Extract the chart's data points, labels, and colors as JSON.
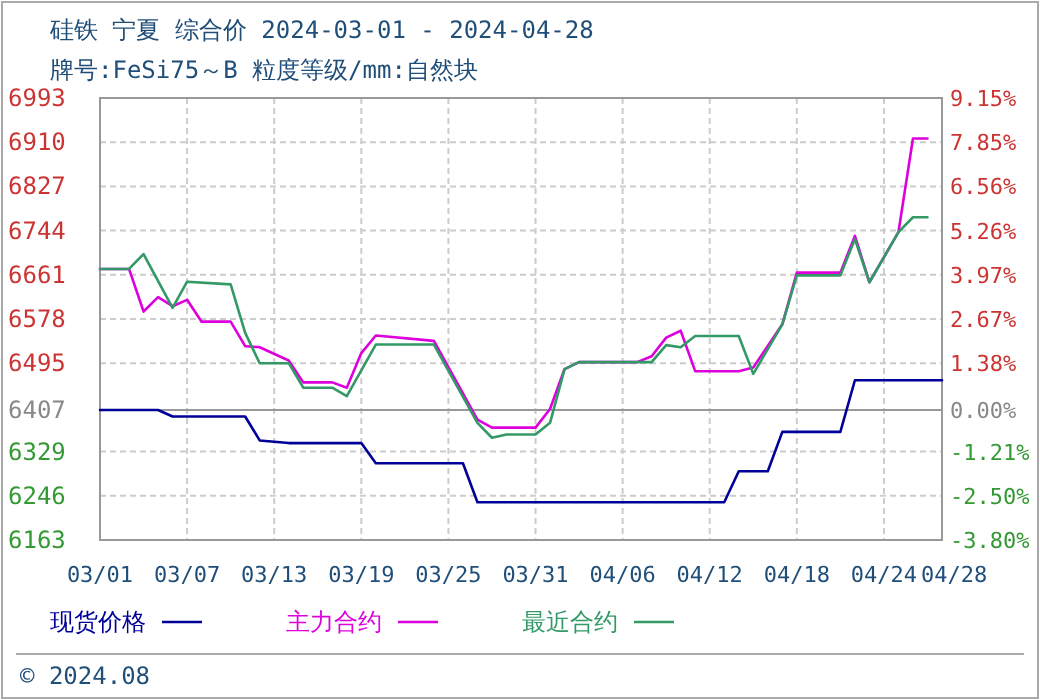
{
  "chart_data": {
    "type": "line",
    "title": "硅铁 宁夏 综合价 2024-03-01 - 2024-04-28",
    "subtitle": "牌号:FeSi75～B 粒度等级/mm:自然块",
    "annotations": [
      "© 2024.08"
    ],
    "xlim": [
      "2024-03-01",
      "2024-04-28"
    ],
    "xticks": [
      {
        "value": "2024-03-01",
        "label": "03/01"
      },
      {
        "value": "2024-03-07",
        "label": "03/07"
      },
      {
        "value": "2024-03-13",
        "label": "03/13"
      },
      {
        "value": "2024-03-19",
        "label": "03/19"
      },
      {
        "value": "2024-03-25",
        "label": "03/25"
      },
      {
        "value": "2024-03-31",
        "label": "03/31"
      },
      {
        "value": "2024-04-06",
        "label": "04/06"
      },
      {
        "value": "2024-04-12",
        "label": "04/12"
      },
      {
        "value": "2024-04-18",
        "label": "04/18"
      },
      {
        "value": "2024-04-24",
        "label": "04/24"
      },
      {
        "value": "2024-04-28",
        "label": "04/28"
      }
    ],
    "ylim": [
      6163,
      6993
    ],
    "yticks": [
      6163,
      6246,
      6329,
      6407,
      6495,
      6578,
      6661,
      6744,
      6827,
      6910,
      6993
    ],
    "y2lim": [
      -3.8,
      9.15
    ],
    "y2ticks": [
      {
        "value": -3.8,
        "label": "-3.80%"
      },
      {
        "value": -2.5,
        "label": "-2.50%"
      },
      {
        "value": -1.21,
        "label": "-1.21%"
      },
      {
        "value": 0.0,
        "label": "0.00%"
      },
      {
        "value": 1.38,
        "label": "1.38%"
      },
      {
        "value": 2.67,
        "label": "2.67%"
      },
      {
        "value": 3.97,
        "label": "3.97%"
      },
      {
        "value": 5.26,
        "label": "5.26%"
      },
      {
        "value": 6.56,
        "label": "6.56%"
      },
      {
        "value": 7.85,
        "label": "7.85%"
      },
      {
        "value": 9.15,
        "label": "9.15%"
      }
    ],
    "ref_lines": [
      {
        "axis": "y",
        "value": 6407,
        "color": "#999999"
      }
    ],
    "grid": true,
    "legend": "bottom",
    "line_style": "solid",
    "series": [
      {
        "name": "现货价格",
        "color": "#000099",
        "x": [
          "2024-03-01",
          "2024-03-05",
          "2024-03-06",
          "2024-03-11",
          "2024-03-12",
          "2024-03-14",
          "2024-03-19",
          "2024-03-20",
          "2024-03-26",
          "2024-03-27",
          "2024-04-13",
          "2024-04-14",
          "2024-04-16",
          "2024-04-17",
          "2024-04-21",
          "2024-04-22",
          "2024-04-28"
        ],
        "values": [
          6407,
          6407,
          6395,
          6395,
          6350,
          6345,
          6345,
          6307,
          6307,
          6234,
          6234,
          6292,
          6292,
          6366,
          6366,
          6463,
          6463
        ]
      },
      {
        "name": "主力合约",
        "color": "#dd00dd",
        "x": [
          "2024-03-01",
          "2024-03-03",
          "2024-03-04",
          "2024-03-05",
          "2024-03-06",
          "2024-03-07",
          "2024-03-08",
          "2024-03-10",
          "2024-03-11",
          "2024-03-12",
          "2024-03-14",
          "2024-03-15",
          "2024-03-17",
          "2024-03-18",
          "2024-03-19",
          "2024-03-20",
          "2024-03-24",
          "2024-03-27",
          "2024-03-28",
          "2024-03-31",
          "2024-04-01",
          "2024-04-02",
          "2024-04-03",
          "2024-04-07",
          "2024-04-08",
          "2024-04-09",
          "2024-04-10",
          "2024-04-11",
          "2024-04-14",
          "2024-04-15",
          "2024-04-17",
          "2024-04-18",
          "2024-04-21",
          "2024-04-22",
          "2024-04-23",
          "2024-04-25",
          "2024-04-26",
          "2024-04-27"
        ],
        "values": [
          6672,
          6672,
          6592,
          6619,
          6602,
          6614,
          6573,
          6573,
          6527,
          6525,
          6500,
          6459,
          6459,
          6449,
          6514,
          6547,
          6537,
          6389,
          6374,
          6374,
          6409,
          6484,
          6497,
          6497,
          6508,
          6543,
          6556,
          6480,
          6480,
          6487,
          6568,
          6665,
          6665,
          6734,
          6647,
          6741,
          6917,
          6917
        ]
      },
      {
        "name": "最近合约",
        "color": "#339966",
        "x": [
          "2024-03-01",
          "2024-03-03",
          "2024-03-04",
          "2024-03-06",
          "2024-03-07",
          "2024-03-10",
          "2024-03-11",
          "2024-03-12",
          "2024-03-14",
          "2024-03-15",
          "2024-03-17",
          "2024-03-18",
          "2024-03-20",
          "2024-03-24",
          "2024-03-27",
          "2024-03-28",
          "2024-03-29",
          "2024-03-31",
          "2024-04-01",
          "2024-04-02",
          "2024-04-03",
          "2024-04-08",
          "2024-04-09",
          "2024-04-10",
          "2024-04-11",
          "2024-04-14",
          "2024-04-15",
          "2024-04-17",
          "2024-04-18",
          "2024-04-21",
          "2024-04-22",
          "2024-04-23",
          "2024-04-25",
          "2024-04-26",
          "2024-04-27"
        ],
        "values": [
          6672,
          6672,
          6700,
          6599,
          6648,
          6643,
          6552,
          6495,
          6495,
          6449,
          6449,
          6433,
          6530,
          6530,
          6383,
          6355,
          6361,
          6361,
          6383,
          6484,
          6497,
          6497,
          6529,
          6525,
          6546,
          6546,
          6475,
          6568,
          6660,
          6660,
          6728,
          6647,
          6741,
          6769,
          6769
        ]
      }
    ]
  }
}
